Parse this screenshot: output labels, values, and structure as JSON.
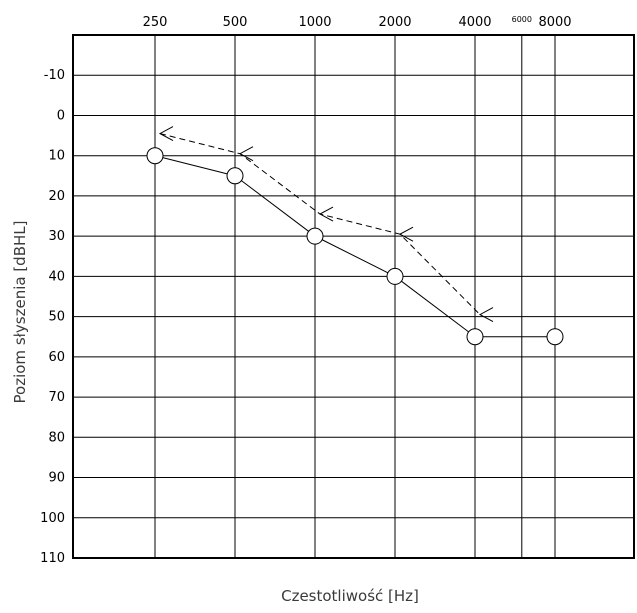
{
  "chart_data": {
    "type": "line",
    "xlabel": "Czestotliwość [Hz]",
    "ylabel": "Poziom słyszenia [dBHL]",
    "x_ticks": [
      "250",
      "500",
      "1000",
      "2000",
      "4000",
      "6000",
      "8000"
    ],
    "y_ticks": [
      "-10",
      "0",
      "10",
      "20",
      "30",
      "40",
      "50",
      "60",
      "70",
      "80",
      "90",
      "100",
      "110"
    ],
    "x_scale": "log",
    "ylim": [
      -20,
      110
    ],
    "y_inverted": true,
    "grid": true,
    "series": [
      {
        "marker": "circle",
        "line_style": "solid",
        "points": [
          {
            "x": 250,
            "y": 10
          },
          {
            "x": 500,
            "y": 15
          },
          {
            "x": 1000,
            "y": 30
          },
          {
            "x": 2000,
            "y": 40
          },
          {
            "x": 4000,
            "y": 55
          },
          {
            "x": 8000,
            "y": 55
          }
        ]
      },
      {
        "marker": "arrow-left",
        "line_style": "dashed",
        "points": [
          {
            "x": 250,
            "y": 5
          },
          {
            "x": 500,
            "y": 10
          },
          {
            "x": 1000,
            "y": 25
          },
          {
            "x": 2000,
            "y": 30
          },
          {
            "x": 4000,
            "y": 50
          }
        ]
      }
    ]
  }
}
